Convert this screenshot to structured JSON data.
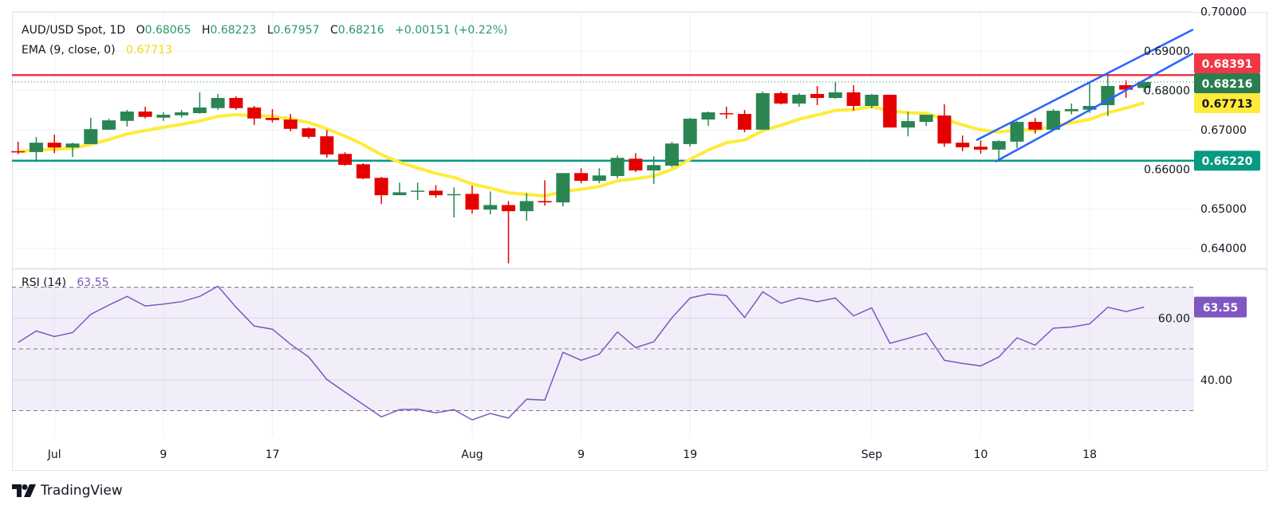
{
  "legend": {
    "symbol": "AUD/USD Spot, 1D",
    "o_label": "O",
    "o_value": "0.68065",
    "h_label": "H",
    "h_value": "0.68223",
    "l_label": "L",
    "l_value": "0.67957",
    "c_label": "C",
    "c_value": "0.68216",
    "change": "+0.00151 (+0.22%)",
    "ema_label": "EMA (9, close, 0)",
    "ema_value": "0.67713",
    "rsi_label": "RSI (14)",
    "rsi_value": "63.55"
  },
  "colors": {
    "up": "#2b8553",
    "down": "#e50000",
    "ema": "#ffeb3b",
    "resistance": "#f23645",
    "support": "#089981",
    "channel": "#2962ff",
    "rsi": "#7e57c2",
    "last_price": "#2b7d4f"
  },
  "logo": {
    "text": "TradingView"
  },
  "chart_data": [
    {
      "type": "candlestick",
      "title": "AUD/USD Spot, 1D",
      "ylim": [
        0.635,
        0.7
      ],
      "price_ticks": [
        {
          "value": 0.7,
          "label": "0.70000"
        },
        {
          "value": 0.69,
          "label": "0.69000"
        },
        {
          "value": 0.68,
          "label": "0.68000"
        },
        {
          "value": 0.67,
          "label": "0.67000"
        },
        {
          "value": 0.66,
          "label": "0.66000"
        },
        {
          "value": 0.65,
          "label": "0.65000"
        },
        {
          "value": 0.64,
          "label": "0.64000"
        }
      ],
      "time_ticks": [
        {
          "bar": 2,
          "label": "Jul"
        },
        {
          "bar": 8,
          "label": "9"
        },
        {
          "bar": 14,
          "label": "17"
        },
        {
          "bar": 25,
          "label": "Aug"
        },
        {
          "bar": 31,
          "label": "9"
        },
        {
          "bar": 37,
          "label": "19"
        },
        {
          "bar": 47,
          "label": "Sep"
        },
        {
          "bar": 53,
          "label": "10"
        },
        {
          "bar": 59,
          "label": "18"
        }
      ],
      "ohlc_fields": [
        "open",
        "high",
        "low",
        "close"
      ],
      "candles": [
        [
          0.6646,
          0.667,
          0.6639,
          0.6645
        ],
        [
          0.66439,
          0.66818,
          0.66189,
          0.66676
        ],
        [
          0.66676,
          0.66878,
          0.66412,
          0.66554
        ],
        [
          0.66554,
          0.66676,
          0.66311,
          0.66655
        ],
        [
          0.66641,
          0.67304,
          0.66641,
          0.6702
        ],
        [
          0.67006,
          0.67284,
          0.67,
          0.67243
        ],
        [
          0.67229,
          0.67507,
          0.67087,
          0.67466
        ],
        [
          0.67466,
          0.67588,
          0.6729,
          0.67331
        ],
        [
          0.67311,
          0.67446,
          0.67229,
          0.67385
        ],
        [
          0.67371,
          0.67507,
          0.67311,
          0.67446
        ],
        [
          0.67426,
          0.67953,
          0.67412,
          0.67568
        ],
        [
          0.67553,
          0.67912,
          0.67513,
          0.67811
        ],
        [
          0.67811,
          0.67851,
          0.67513,
          0.67553
        ],
        [
          0.67568,
          0.67608,
          0.67128,
          0.6729
        ],
        [
          0.67304,
          0.67527,
          0.67189,
          0.6725
        ],
        [
          0.67263,
          0.67405,
          0.66966,
          0.67027
        ],
        [
          0.6704,
          0.67067,
          0.66783,
          0.66824
        ],
        [
          0.66838,
          0.67,
          0.66297,
          0.66378
        ],
        [
          0.66392,
          0.66432,
          0.66094,
          0.66114
        ],
        [
          0.66128,
          0.66155,
          0.65749,
          0.6577
        ],
        [
          0.65784,
          0.6581,
          0.65121,
          0.65344
        ],
        [
          0.65344,
          0.65662,
          0.65344,
          0.65418
        ],
        [
          0.6545,
          0.65662,
          0.65222,
          0.6546
        ],
        [
          0.65459,
          0.65601,
          0.65283,
          0.65344
        ],
        [
          0.65344,
          0.6554,
          0.64777,
          0.65372
        ],
        [
          0.65378,
          0.65587,
          0.64878,
          0.64979
        ],
        [
          0.64979,
          0.65439,
          0.64858,
          0.65095
        ],
        [
          0.65095,
          0.65196,
          0.63615,
          0.64939
        ],
        [
          0.64939,
          0.65398,
          0.64696,
          0.65196
        ],
        [
          0.65196,
          0.65723,
          0.65081,
          0.65162
        ],
        [
          0.65162,
          0.65905,
          0.65061,
          0.65905
        ],
        [
          0.65905,
          0.66027,
          0.65648,
          0.65709
        ],
        [
          0.65709,
          0.66027,
          0.65648,
          0.65845
        ],
        [
          0.65831,
          0.66351,
          0.6577,
          0.66291
        ],
        [
          0.6627,
          0.66412,
          0.65932,
          0.65972
        ],
        [
          0.65972,
          0.66331,
          0.65628,
          0.66108
        ],
        [
          0.66094,
          0.66696,
          0.66054,
          0.66655
        ],
        [
          0.66641,
          0.67304,
          0.6658,
          0.67284
        ],
        [
          0.67264,
          0.67466,
          0.67101,
          0.67446
        ],
        [
          0.67425,
          0.67588,
          0.67284,
          0.67415
        ],
        [
          0.67405,
          0.67507,
          0.66939,
          0.67006
        ],
        [
          0.67006,
          0.67973,
          0.67006,
          0.67932
        ],
        [
          0.67932,
          0.67973,
          0.67649,
          0.67669
        ],
        [
          0.67669,
          0.67932,
          0.67588,
          0.67892
        ],
        [
          0.67912,
          0.68115,
          0.67628,
          0.67811
        ],
        [
          0.67811,
          0.68216,
          0.67791,
          0.67953
        ],
        [
          0.67953,
          0.68135,
          0.67487,
          0.67608
        ],
        [
          0.67608,
          0.67912,
          0.67547,
          0.67892
        ],
        [
          0.67892,
          0.67892,
          0.67061,
          0.67061
        ],
        [
          0.67061,
          0.67466,
          0.66838,
          0.67223
        ],
        [
          0.67203,
          0.67385,
          0.67101,
          0.67385
        ],
        [
          0.67365,
          0.67649,
          0.66574,
          0.66655
        ],
        [
          0.66676,
          0.66858,
          0.66459,
          0.6656
        ],
        [
          0.66574,
          0.66736,
          0.66398,
          0.665
        ],
        [
          0.665,
          0.66736,
          0.66189,
          0.66716
        ],
        [
          0.66702,
          0.67223,
          0.6654,
          0.67203
        ],
        [
          0.67203,
          0.67304,
          0.66905,
          0.67006
        ],
        [
          0.67006,
          0.67527,
          0.67006,
          0.67486
        ],
        [
          0.67473,
          0.67669,
          0.67392,
          0.67527
        ],
        [
          0.67513,
          0.68196,
          0.67432,
          0.67608
        ],
        [
          0.67628,
          0.68378,
          0.67351,
          0.68115
        ],
        [
          0.68135,
          0.68257,
          0.67817,
          0.6802
        ],
        [
          0.68065,
          0.68223,
          0.67957,
          0.68216
        ]
      ],
      "ema": {
        "period": 9,
        "last": 0.67713,
        "label": "0.67713"
      },
      "horizontal_lines": [
        {
          "name": "resistance",
          "value": 0.68391,
          "label": "0.68391"
        },
        {
          "name": "support",
          "value": 0.6622,
          "label": "0.66220"
        }
      ],
      "last_price": {
        "value": 0.68216,
        "label": "0.68216"
      },
      "trend_channel": [
        {
          "name": "upper",
          "from": {
            "bar": 52.76,
            "price": 0.66739
          },
          "to": {
            "bar": 64.7,
            "price": 0.69547
          }
        },
        {
          "name": "lower",
          "from": {
            "bar": 53.81,
            "price": 0.66194
          },
          "to": {
            "bar": 64.7,
            "price": 0.68941
          }
        }
      ]
    },
    {
      "type": "line",
      "title": "RSI (14)",
      "ylim": [
        30,
        70
      ],
      "levels": [
        70,
        50,
        30
      ],
      "ticks": [
        {
          "value": 60,
          "label": "60.00"
        },
        {
          "value": 40,
          "label": "40.00"
        }
      ],
      "last": {
        "value": 63.55,
        "label": "63.55"
      },
      "values": [
        52.1,
        55.8,
        54.0,
        55.3,
        61.2,
        64.2,
        67.0,
        63.9,
        64.5,
        65.3,
        67.0,
        70.3,
        63.5,
        57.4,
        56.4,
        51.5,
        47.4,
        40.1,
        36.0,
        32.0,
        28.0,
        30.3,
        30.5,
        29.3,
        30.3,
        27.0,
        29.1,
        27.6,
        33.7,
        33.4,
        48.9,
        46.3,
        48.3,
        55.5,
        50.4,
        52.3,
        60.1,
        66.5,
        67.8,
        67.3,
        60.2,
        68.5,
        64.8,
        66.5,
        65.3,
        66.5,
        60.7,
        63.3,
        51.8,
        53.4,
        55.1,
        46.3,
        45.3,
        44.5,
        47.4,
        53.6,
        51.2,
        56.7,
        57.1,
        58.1,
        63.5,
        62.1,
        63.55
      ]
    }
  ]
}
